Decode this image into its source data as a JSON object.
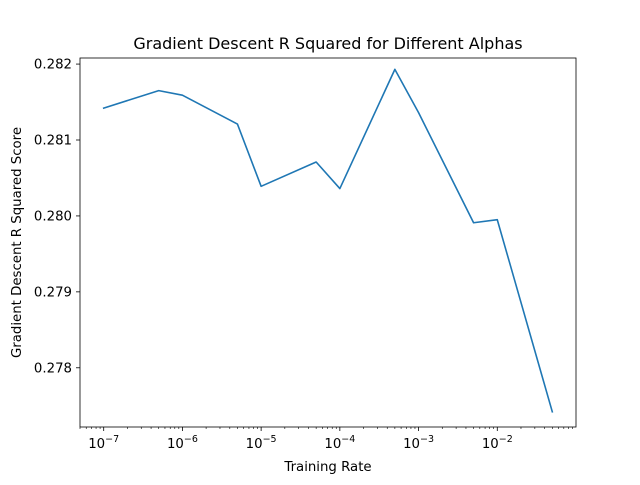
{
  "chart_data": {
    "type": "line",
    "title": "Gradient Descent R Squared for Different Alphas",
    "xlabel": "Training Rate",
    "ylabel": "Gradient Descent R Squared Score",
    "xscale": "log",
    "xlim": [
      5e-08,
      0.1
    ],
    "ylim": [
      0.27722,
      0.28208
    ],
    "grid": false,
    "legend": "none",
    "line_color": "#1f77b4",
    "x_ticks": [
      {
        "value": 1e-07,
        "base": "10",
        "exp": "−7"
      },
      {
        "value": 1e-06,
        "base": "10",
        "exp": "−6"
      },
      {
        "value": 1e-05,
        "base": "10",
        "exp": "−5"
      },
      {
        "value": 0.0001,
        "base": "10",
        "exp": "−4"
      },
      {
        "value": 0.001,
        "base": "10",
        "exp": "−3"
      },
      {
        "value": 0.01,
        "base": "10",
        "exp": "−2"
      }
    ],
    "y_ticks": [
      {
        "value": 0.278,
        "label": "0.278"
      },
      {
        "value": 0.279,
        "label": "0.279"
      },
      {
        "value": 0.28,
        "label": "0.280"
      },
      {
        "value": 0.281,
        "label": "0.281"
      },
      {
        "value": 0.282,
        "label": "0.282"
      }
    ],
    "series": [
      {
        "x": [
          1e-07,
          5e-07,
          1e-06,
          5e-06,
          1e-05,
          5e-05,
          0.0001,
          0.0005,
          0.001,
          0.005,
          0.01,
          0.05
        ],
        "y": [
          0.28142,
          0.28165,
          0.28159,
          0.28121,
          0.28039,
          0.28071,
          0.28036,
          0.28193,
          0.28136,
          0.27991,
          0.27995,
          0.27742
        ]
      }
    ]
  }
}
